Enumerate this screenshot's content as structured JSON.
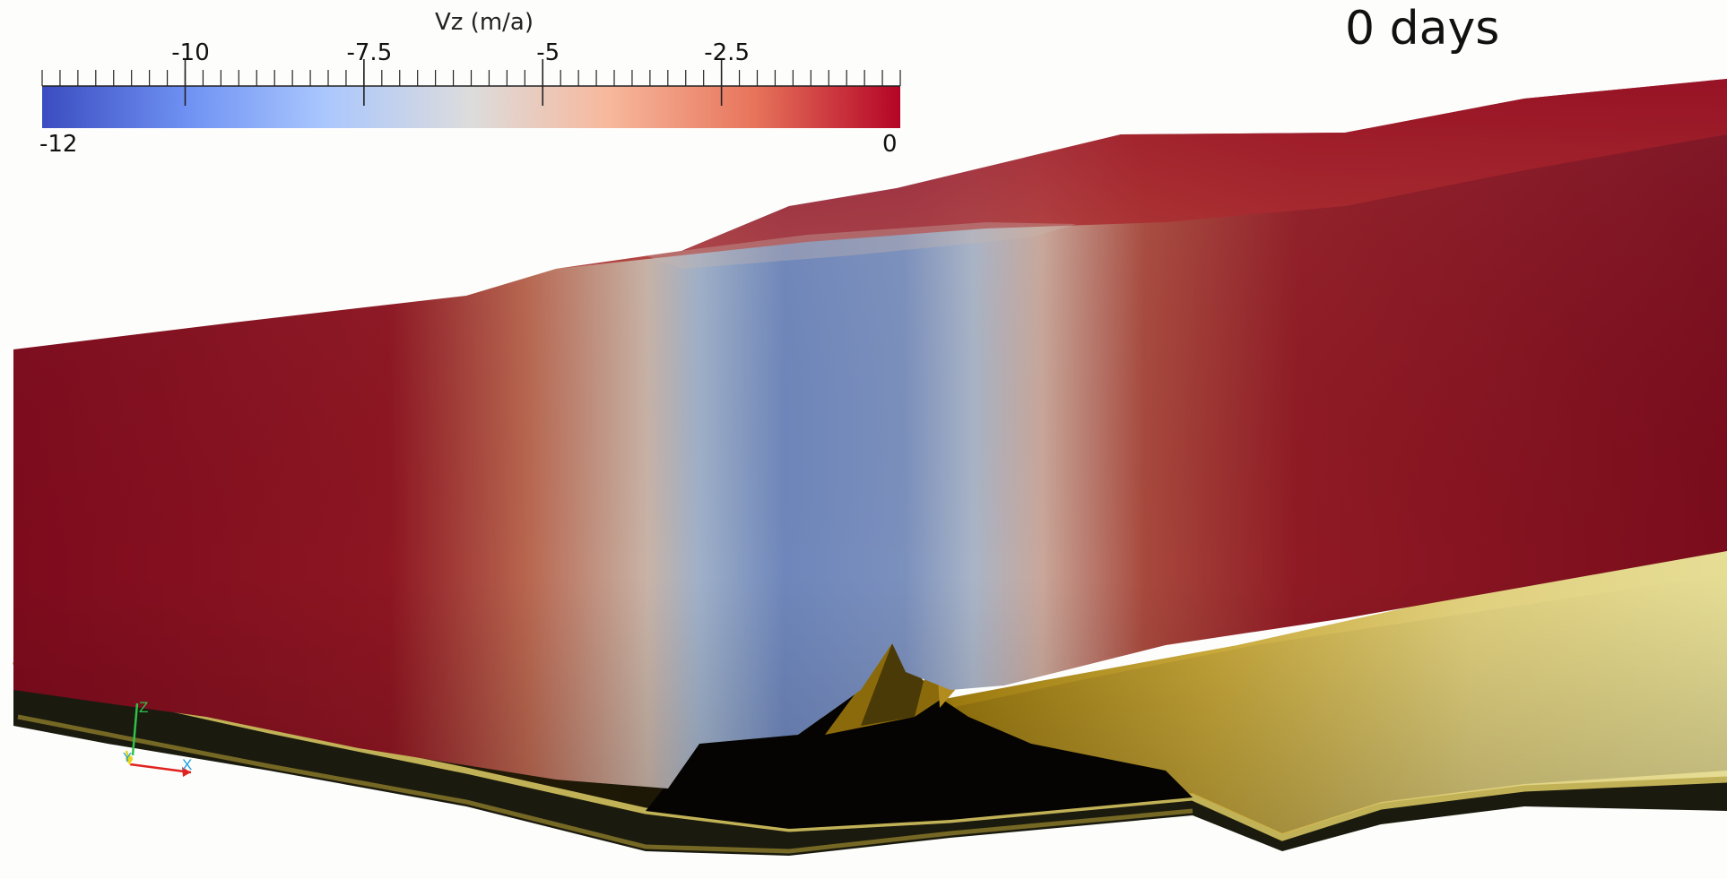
{
  "scalar_bar": {
    "title": "Vz (m/a)",
    "range_min": -12,
    "range_max": 0,
    "min_label": "-12",
    "max_label": "0",
    "ticks": [
      {
        "value": -10,
        "label": "-10"
      },
      {
        "value": -7.5,
        "label": "-7.5"
      },
      {
        "value": -5,
        "label": "-5"
      },
      {
        "value": -2.5,
        "label": "-2.5"
      }
    ],
    "colormap": [
      "#3b4cc0",
      "#6f92f3",
      "#aac7fd",
      "#dddcdc",
      "#f7b89c",
      "#e7745b",
      "#b40426"
    ]
  },
  "time_annotation": "0 days",
  "surface_colors": {
    "ice_body": "#8a0c1e",
    "bed": "#d9cf7c"
  },
  "orientation_axes": [
    "Z",
    "Y",
    "X"
  ]
}
